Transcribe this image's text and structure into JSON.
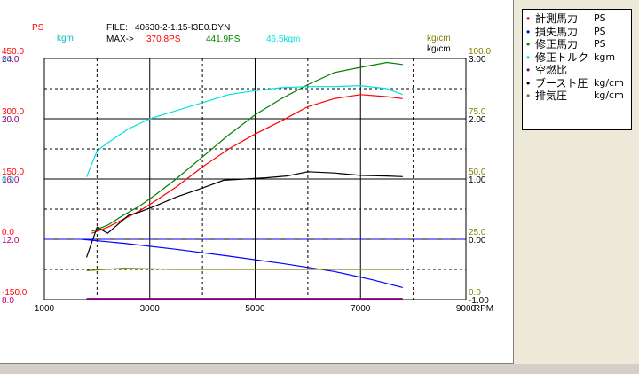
{
  "header": {
    "file_label": "FILE:",
    "file_name": "40630-2-1.15-I3E0.DYN",
    "max_label": "MAX->",
    "max_ps": "370.8PS",
    "max_corr_ps": "441.9PS",
    "max_torque": "46.5kgm",
    "unit_ps": "PS",
    "unit_kgm": "kgm",
    "unit_kgcm_1": "kg/cm",
    "unit_kgcm_2": "kg/cm"
  },
  "legend": [
    {
      "name": "計測馬力",
      "unit": "PS",
      "color": "#ff0000"
    },
    {
      "name": "損失馬力",
      "unit": "PS",
      "color": "#0000ff"
    },
    {
      "name": "修正馬力",
      "unit": "PS",
      "color": "#008000"
    },
    {
      "name": "修正トルク",
      "unit": "kgm",
      "color": "#00e0e0"
    },
    {
      "name": "空燃比",
      "unit": "",
      "color": "#800080"
    },
    {
      "name": "ブースト圧",
      "unit": "kg/cm",
      "color": "#000000"
    },
    {
      "name": "排気圧",
      "unit": "kg/cm",
      "color": "#808000"
    }
  ],
  "colors": {
    "ps_axis": "#ff0000",
    "torque_axis": "#00e0e0",
    "afr_axis": "#c00080",
    "right_axis": "#808000",
    "grid": "#000000"
  },
  "chart_data": {
    "type": "line",
    "x_label": "RPM",
    "xlim": [
      1000,
      9000
    ],
    "x_ticks": [
      "1000",
      "3000",
      "5000",
      "7000",
      "9000"
    ],
    "axes": {
      "ps": {
        "ticks": [
          "450.0",
          "300.0",
          "150.0",
          "0.0",
          "-150.0"
        ],
        "range": [
          -150,
          450
        ]
      },
      "torque": {
        "ticks": [
          "60.0",
          "30.0",
          "0.0"
        ],
        "range": [
          -60,
          60
        ]
      },
      "afr": {
        "ticks": [
          "24.0",
          "20.0",
          "16.0",
          "12.0",
          "8.0"
        ],
        "range": [
          8,
          24
        ]
      },
      "exhaust": {
        "ticks": [
          "100.0",
          "75.0",
          "50.0",
          "25.0",
          "0.0"
        ],
        "range": [
          0,
          100
        ]
      },
      "boost": {
        "ticks": [
          "3.00",
          "2.00",
          "1.00",
          "0.00",
          "-1.00"
        ],
        "range": [
          -1,
          3
        ]
      }
    },
    "series": [
      {
        "name": "計測馬力",
        "unit": "PS",
        "axis": "ps",
        "color": "#ff0000",
        "x": [
          1900,
          2200,
          2500,
          2800,
          3100,
          3500,
          4000,
          4500,
          5000,
          5500,
          6000,
          6500,
          7000,
          7500,
          7800
        ],
        "y": [
          15,
          30,
          50,
          70,
          95,
          130,
          180,
          225,
          262,
          295,
          330,
          350,
          360,
          355,
          350
        ]
      },
      {
        "name": "修正馬力",
        "unit": "PS",
        "axis": "ps",
        "color": "#008000",
        "x": [
          1900,
          2200,
          2500,
          2800,
          3100,
          3500,
          4000,
          4500,
          5000,
          5500,
          6000,
          6500,
          7000,
          7500,
          7800
        ],
        "y": [
          20,
          35,
          60,
          82,
          110,
          150,
          205,
          260,
          310,
          350,
          385,
          415,
          428,
          440,
          435
        ]
      },
      {
        "name": "修正トルク",
        "unit": "kgm",
        "axis": "torque",
        "color": "#00e0e0",
        "x": [
          1800,
          2000,
          2200,
          2600,
          3000,
          3500,
          4000,
          4500,
          5000,
          5500,
          6000,
          6500,
          7000,
          7500,
          7800
        ],
        "y": [
          1,
          14,
          18,
          25,
          30,
          34,
          38,
          42,
          44,
          45.5,
          46,
          46,
          46.5,
          45,
          42
        ]
      },
      {
        "name": "ブースト圧",
        "unit": "kg/cm",
        "axis": "boost",
        "color": "#000000",
        "x": [
          1800,
          2000,
          2200,
          2400,
          2600,
          2800,
          3100,
          3500,
          4000,
          4400,
          4800,
          5200,
          5600,
          6000,
          6500,
          7000,
          7500,
          7800
        ],
        "y": [
          -0.3,
          0.2,
          0.1,
          0.25,
          0.4,
          0.45,
          0.55,
          0.7,
          0.85,
          0.98,
          1.0,
          1.02,
          1.05,
          1.12,
          1.1,
          1.06,
          1.05,
          1.04
        ]
      },
      {
        "name": "損失馬力",
        "unit": "PS",
        "axis": "ps",
        "color": "#0000ff",
        "x": [
          1700,
          2500,
          3500,
          4500,
          5500,
          6500,
          7200,
          7800
        ],
        "y": [
          0,
          -10,
          -25,
          -42,
          -60,
          -80,
          -100,
          -120
        ]
      },
      {
        "name": "排気圧",
        "unit": "kg/cm",
        "axis": "exhaust",
        "color": "#808000",
        "x": [
          1800,
          2500,
          3500,
          5000,
          6500,
          7800
        ],
        "y": [
          12,
          13,
          12.5,
          12.5,
          12.5,
          12.5
        ]
      },
      {
        "name": "空燃比",
        "unit": "",
        "axis": "afr",
        "color": "#800080",
        "x": [
          1800,
          3000,
          5000,
          7000,
          7800
        ],
        "y": [
          8.05,
          8.05,
          8.05,
          8.05,
          8.05
        ]
      }
    ],
    "reference_line": {
      "axis": "boost",
      "value": 0.0,
      "color": "#0000ff"
    }
  }
}
